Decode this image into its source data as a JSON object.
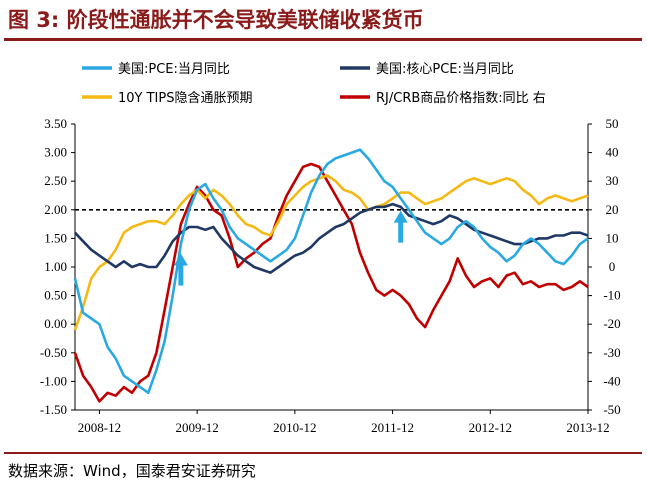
{
  "title": "图 3:  阶段性通胀并不会导致美联储收紧货币",
  "source": "数据来源：Wind，国泰君安证券研究",
  "chart_data": {
    "type": "line",
    "title": "",
    "xlabel": "",
    "ylabel": "",
    "x_ticks": [
      "2008-12",
      "2009-12",
      "2010-12",
      "2011-12",
      "2012-12",
      "2013-12"
    ],
    "x_range": [
      "2008-09",
      "2013-12"
    ],
    "y_left_range": [
      -1.5,
      3.5
    ],
    "y_left_ticks": [
      "3.50",
      "3.00",
      "2.50",
      "2.00",
      "1.50",
      "1.00",
      "0.50",
      "0.00",
      "-0.50",
      "-1.00",
      "-1.50"
    ],
    "y_right_range": [
      -50,
      50
    ],
    "y_right_ticks": [
      "50",
      "40",
      "30",
      "20",
      "10",
      "0",
      "-10",
      "-20",
      "-30",
      "-40",
      "-50"
    ],
    "reference_line": {
      "axis": "left",
      "value": 2.0,
      "style": "dashed"
    },
    "legend_position": "top",
    "colors": {
      "pce": "#29a9e1",
      "core_pce": "#1f3864",
      "tips": "#f5b915",
      "crb": "#c00000",
      "arrow": "#29a9e1"
    },
    "series": [
      {
        "name": "美国:PCE:当月同比",
        "axis": "left",
        "color": "#29a9e1",
        "points": [
          [
            "2008-09",
            0.8
          ],
          [
            "2008-10",
            0.2
          ],
          [
            "2008-11",
            0.1
          ],
          [
            "2008-12",
            0.0
          ],
          [
            "2009-01",
            -0.4
          ],
          [
            "2009-02",
            -0.6
          ],
          [
            "2009-03",
            -0.9
          ],
          [
            "2009-04",
            -1.0
          ],
          [
            "2009-05",
            -1.1
          ],
          [
            "2009-06",
            -1.2
          ],
          [
            "2009-07",
            -0.8
          ],
          [
            "2009-08",
            -0.3
          ],
          [
            "2009-09",
            0.5
          ],
          [
            "2009-10",
            1.4
          ],
          [
            "2009-11",
            2.0
          ],
          [
            "2009-12",
            2.35
          ],
          [
            "2010-01",
            2.45
          ],
          [
            "2010-02",
            2.2
          ],
          [
            "2010-03",
            2.0
          ],
          [
            "2010-04",
            1.7
          ],
          [
            "2010-05",
            1.5
          ],
          [
            "2010-06",
            1.4
          ],
          [
            "2010-07",
            1.3
          ],
          [
            "2010-08",
            1.2
          ],
          [
            "2010-09",
            1.1
          ],
          [
            "2010-10",
            1.2
          ],
          [
            "2010-11",
            1.3
          ],
          [
            "2010-12",
            1.5
          ],
          [
            "2011-01",
            1.9
          ],
          [
            "2011-02",
            2.3
          ],
          [
            "2011-03",
            2.6
          ],
          [
            "2011-04",
            2.8
          ],
          [
            "2011-05",
            2.9
          ],
          [
            "2011-06",
            2.95
          ],
          [
            "2011-07",
            3.0
          ],
          [
            "2011-08",
            3.05
          ],
          [
            "2011-09",
            2.9
          ],
          [
            "2011-10",
            2.7
          ],
          [
            "2011-11",
            2.5
          ],
          [
            "2011-12",
            2.4
          ],
          [
            "2012-01",
            2.2
          ],
          [
            "2012-02",
            2.0
          ],
          [
            "2012-03",
            1.8
          ],
          [
            "2012-04",
            1.6
          ],
          [
            "2012-05",
            1.5
          ],
          [
            "2012-06",
            1.4
          ],
          [
            "2012-07",
            1.5
          ],
          [
            "2012-08",
            1.7
          ],
          [
            "2012-09",
            1.8
          ],
          [
            "2012-10",
            1.7
          ],
          [
            "2012-11",
            1.5
          ],
          [
            "2012-12",
            1.35
          ],
          [
            "2013-01",
            1.25
          ],
          [
            "2013-02",
            1.1
          ],
          [
            "2013-03",
            1.2
          ],
          [
            "2013-04",
            1.4
          ],
          [
            "2013-05",
            1.5
          ],
          [
            "2013-06",
            1.4
          ],
          [
            "2013-07",
            1.25
          ],
          [
            "2013-08",
            1.1
          ],
          [
            "2013-09",
            1.05
          ],
          [
            "2013-10",
            1.2
          ],
          [
            "2013-11",
            1.4
          ],
          [
            "2013-12",
            1.5
          ]
        ]
      },
      {
        "name": "美国:核心PCE:当月同比",
        "axis": "left",
        "color": "#1f3864",
        "points": [
          [
            "2008-09",
            1.6
          ],
          [
            "2008-10",
            1.45
          ],
          [
            "2008-11",
            1.3
          ],
          [
            "2008-12",
            1.2
          ],
          [
            "2009-01",
            1.1
          ],
          [
            "2009-02",
            1.0
          ],
          [
            "2009-03",
            1.1
          ],
          [
            "2009-04",
            1.0
          ],
          [
            "2009-05",
            1.05
          ],
          [
            "2009-06",
            1.0
          ],
          [
            "2009-07",
            1.0
          ],
          [
            "2009-08",
            1.2
          ],
          [
            "2009-09",
            1.45
          ],
          [
            "2009-10",
            1.6
          ],
          [
            "2009-11",
            1.7
          ],
          [
            "2009-12",
            1.7
          ],
          [
            "2010-01",
            1.65
          ],
          [
            "2010-02",
            1.7
          ],
          [
            "2010-03",
            1.5
          ],
          [
            "2010-04",
            1.35
          ],
          [
            "2010-05",
            1.2
          ],
          [
            "2010-06",
            1.1
          ],
          [
            "2010-07",
            1.0
          ],
          [
            "2010-08",
            0.95
          ],
          [
            "2010-09",
            0.9
          ],
          [
            "2010-10",
            1.0
          ],
          [
            "2010-11",
            1.1
          ],
          [
            "2010-12",
            1.2
          ],
          [
            "2011-01",
            1.25
          ],
          [
            "2011-02",
            1.35
          ],
          [
            "2011-03",
            1.5
          ],
          [
            "2011-04",
            1.6
          ],
          [
            "2011-05",
            1.7
          ],
          [
            "2011-06",
            1.75
          ],
          [
            "2011-07",
            1.85
          ],
          [
            "2011-08",
            1.95
          ],
          [
            "2011-09",
            2.0
          ],
          [
            "2011-10",
            2.05
          ],
          [
            "2011-11",
            2.05
          ],
          [
            "2011-12",
            2.1
          ],
          [
            "2012-01",
            2.05
          ],
          [
            "2012-02",
            1.9
          ],
          [
            "2012-03",
            1.85
          ],
          [
            "2012-04",
            1.8
          ],
          [
            "2012-05",
            1.75
          ],
          [
            "2012-06",
            1.8
          ],
          [
            "2012-07",
            1.9
          ],
          [
            "2012-08",
            1.85
          ],
          [
            "2012-09",
            1.75
          ],
          [
            "2012-10",
            1.65
          ],
          [
            "2012-11",
            1.6
          ],
          [
            "2012-12",
            1.55
          ],
          [
            "2013-01",
            1.5
          ],
          [
            "2013-02",
            1.45
          ],
          [
            "2013-03",
            1.4
          ],
          [
            "2013-04",
            1.4
          ],
          [
            "2013-05",
            1.45
          ],
          [
            "2013-06",
            1.5
          ],
          [
            "2013-07",
            1.5
          ],
          [
            "2013-08",
            1.55
          ],
          [
            "2013-09",
            1.55
          ],
          [
            "2013-10",
            1.6
          ],
          [
            "2013-11",
            1.6
          ],
          [
            "2013-12",
            1.55
          ]
        ]
      },
      {
        "name": "10Y TIPS隐含通胀预期",
        "axis": "left",
        "color": "#f5b915",
        "points": [
          [
            "2008-09",
            -0.1
          ],
          [
            "2008-10",
            0.3
          ],
          [
            "2008-11",
            0.8
          ],
          [
            "2008-12",
            1.0
          ],
          [
            "2009-01",
            1.1
          ],
          [
            "2009-02",
            1.3
          ],
          [
            "2009-03",
            1.6
          ],
          [
            "2009-04",
            1.7
          ],
          [
            "2009-05",
            1.75
          ],
          [
            "2009-06",
            1.8
          ],
          [
            "2009-07",
            1.8
          ],
          [
            "2009-08",
            1.75
          ],
          [
            "2009-09",
            1.9
          ],
          [
            "2009-10",
            2.1
          ],
          [
            "2009-11",
            2.25
          ],
          [
            "2009-12",
            2.35
          ],
          [
            "2010-01",
            2.2
          ],
          [
            "2010-02",
            2.35
          ],
          [
            "2010-03",
            2.25
          ],
          [
            "2010-04",
            2.1
          ],
          [
            "2010-05",
            1.9
          ],
          [
            "2010-06",
            1.75
          ],
          [
            "2010-07",
            1.7
          ],
          [
            "2010-08",
            1.6
          ],
          [
            "2010-09",
            1.55
          ],
          [
            "2010-10",
            1.8
          ],
          [
            "2010-11",
            2.1
          ],
          [
            "2010-12",
            2.25
          ],
          [
            "2011-01",
            2.4
          ],
          [
            "2011-02",
            2.5
          ],
          [
            "2011-03",
            2.55
          ],
          [
            "2011-04",
            2.6
          ],
          [
            "2011-05",
            2.5
          ],
          [
            "2011-06",
            2.35
          ],
          [
            "2011-07",
            2.3
          ],
          [
            "2011-08",
            2.2
          ],
          [
            "2011-09",
            2.0
          ],
          [
            "2011-10",
            2.05
          ],
          [
            "2011-11",
            2.1
          ],
          [
            "2011-12",
            2.2
          ],
          [
            "2012-01",
            2.3
          ],
          [
            "2012-02",
            2.3
          ],
          [
            "2012-03",
            2.2
          ],
          [
            "2012-04",
            2.1
          ],
          [
            "2012-05",
            2.15
          ],
          [
            "2012-06",
            2.2
          ],
          [
            "2012-07",
            2.3
          ],
          [
            "2012-08",
            2.4
          ],
          [
            "2012-09",
            2.5
          ],
          [
            "2012-10",
            2.55
          ],
          [
            "2012-11",
            2.5
          ],
          [
            "2012-12",
            2.45
          ],
          [
            "2013-01",
            2.5
          ],
          [
            "2013-02",
            2.55
          ],
          [
            "2013-03",
            2.5
          ],
          [
            "2013-04",
            2.35
          ],
          [
            "2013-05",
            2.25
          ],
          [
            "2013-06",
            2.1
          ],
          [
            "2013-07",
            2.2
          ],
          [
            "2013-08",
            2.25
          ],
          [
            "2013-09",
            2.2
          ],
          [
            "2013-10",
            2.15
          ],
          [
            "2013-11",
            2.2
          ],
          [
            "2013-12",
            2.25
          ]
        ]
      },
      {
        "name": "RJ/CRB商品价格指数:同比 右",
        "axis": "right",
        "color": "#c00000",
        "points": [
          [
            "2008-09",
            -30
          ],
          [
            "2008-10",
            -38
          ],
          [
            "2008-11",
            -42
          ],
          [
            "2008-12",
            -47
          ],
          [
            "2009-01",
            -44
          ],
          [
            "2009-02",
            -45
          ],
          [
            "2009-03",
            -42
          ],
          [
            "2009-04",
            -44
          ],
          [
            "2009-05",
            -40
          ],
          [
            "2009-06",
            -38
          ],
          [
            "2009-07",
            -30
          ],
          [
            "2009-08",
            -15
          ],
          [
            "2009-09",
            0
          ],
          [
            "2009-10",
            15
          ],
          [
            "2009-11",
            22
          ],
          [
            "2009-12",
            28
          ],
          [
            "2010-01",
            25
          ],
          [
            "2010-02",
            20
          ],
          [
            "2010-03",
            18
          ],
          [
            "2010-04",
            10
          ],
          [
            "2010-05",
            0
          ],
          [
            "2010-06",
            3
          ],
          [
            "2010-07",
            5
          ],
          [
            "2010-08",
            8
          ],
          [
            "2010-09",
            10
          ],
          [
            "2010-10",
            18
          ],
          [
            "2010-11",
            25
          ],
          [
            "2010-12",
            30
          ],
          [
            "2011-01",
            35
          ],
          [
            "2011-02",
            36
          ],
          [
            "2011-03",
            35
          ],
          [
            "2011-04",
            30
          ],
          [
            "2011-05",
            25
          ],
          [
            "2011-06",
            20
          ],
          [
            "2011-07",
            15
          ],
          [
            "2011-08",
            5
          ],
          [
            "2011-09",
            -2
          ],
          [
            "2011-10",
            -8
          ],
          [
            "2011-11",
            -10
          ],
          [
            "2011-12",
            -8
          ],
          [
            "2012-01",
            -10
          ],
          [
            "2012-02",
            -13
          ],
          [
            "2012-03",
            -18
          ],
          [
            "2012-04",
            -21
          ],
          [
            "2012-05",
            -15
          ],
          [
            "2012-06",
            -10
          ],
          [
            "2012-07",
            -5
          ],
          [
            "2012-08",
            3
          ],
          [
            "2012-09",
            -3
          ],
          [
            "2012-10",
            -7
          ],
          [
            "2012-11",
            -5
          ],
          [
            "2012-12",
            -4
          ],
          [
            "2013-01",
            -7
          ],
          [
            "2013-02",
            -3
          ],
          [
            "2013-03",
            -2
          ],
          [
            "2013-04",
            -6
          ],
          [
            "2013-05",
            -5
          ],
          [
            "2013-06",
            -7
          ],
          [
            "2013-07",
            -6
          ],
          [
            "2013-08",
            -6
          ],
          [
            "2013-09",
            -8
          ],
          [
            "2013-10",
            -7
          ],
          [
            "2013-11",
            -5
          ],
          [
            "2013-12",
            -7
          ]
        ]
      }
    ],
    "annotations": [
      {
        "type": "arrow",
        "at": "2009-10",
        "axis": "left",
        "value": 1.2,
        "direction": "up"
      },
      {
        "type": "arrow",
        "at": "2012-01",
        "axis": "left",
        "value": 1.95,
        "direction": "up"
      }
    ]
  }
}
